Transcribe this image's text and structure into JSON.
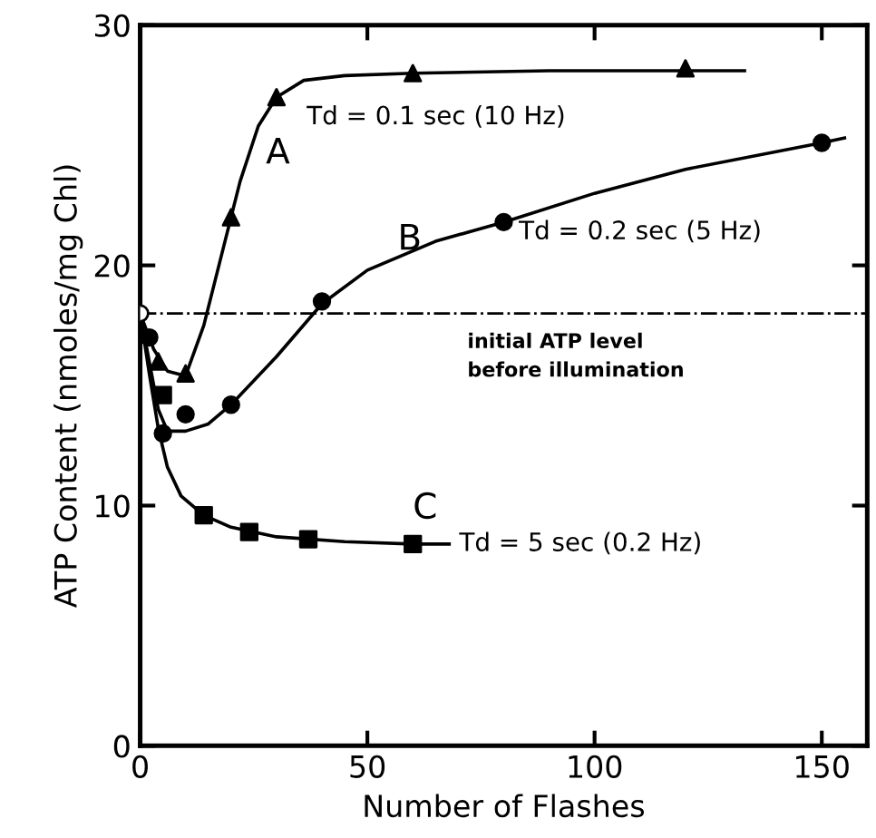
{
  "chart_data": {
    "type": "scatter",
    "xlabel": "Number of Flashes",
    "ylabel": "ATP Content (nmoles/mg Chl)",
    "xlim": [
      0,
      160
    ],
    "ylim": [
      0,
      30
    ],
    "xticks": [
      0,
      50,
      100,
      150
    ],
    "yticks": [
      0,
      10,
      20,
      30
    ],
    "grid": false,
    "legend": false,
    "series": [
      {
        "type": "line",
        "name": "A",
        "color": "#000000",
        "marker": "none",
        "x": [
          0,
          3,
          6,
          10,
          14,
          18,
          22,
          26,
          30,
          36,
          45,
          60,
          90,
          133
        ],
        "values": [
          18,
          16.5,
          15.6,
          15.4,
          17.5,
          20.5,
          23.5,
          25.8,
          27,
          27.7,
          27.9,
          28,
          28.1,
          28.1
        ]
      },
      {
        "type": "line",
        "name": "B",
        "color": "#000000",
        "marker": "none",
        "x": [
          0,
          2,
          4,
          6,
          10,
          15,
          20,
          30,
          40,
          50,
          65,
          80,
          100,
          120,
          150,
          155
        ],
        "values": [
          18,
          16,
          14,
          13.1,
          13.1,
          13.4,
          14.2,
          16.2,
          18.4,
          19.8,
          21,
          21.8,
          23,
          24,
          25.1,
          25.3
        ]
      },
      {
        "type": "line",
        "name": "Td = 5 sec (0.2 Hz)",
        "color": "#000000",
        "marker": "none",
        "x": [
          0,
          2,
          4,
          6,
          9,
          14,
          20,
          30,
          45,
          60,
          68
        ],
        "values": [
          18,
          15.5,
          13.2,
          11.6,
          10.4,
          9.6,
          9.1,
          8.7,
          8.5,
          8.4,
          8.4
        ]
      },
      {
        "name": "Td = 0.1 sec (10 Hz)",
        "color": "#000000",
        "marker": "triangle",
        "x": [
          4,
          10,
          20,
          30,
          60,
          120
        ],
        "values": [
          16,
          15.5,
          22,
          27,
          28,
          28.2
        ]
      },
      {
        "name": "Td = 0.2 sec (5 Hz)",
        "color": "#000000",
        "marker": "circle",
        "x": [
          2,
          5,
          10,
          20,
          40,
          80,
          150
        ],
        "values": [
          17,
          13,
          13.8,
          14.2,
          18.5,
          21.8,
          25.1
        ]
      },
      {
        "name": "C",
        "color": "#000000",
        "marker": "square",
        "x": [
          5,
          14,
          24,
          37,
          60
        ],
        "values": [
          14.6,
          9.6,
          8.9,
          8.6,
          8.4
        ]
      },
      {
        "color": "#ffffff",
        "marker": "circle",
        "x": [
          0
        ],
        "values": [
          18
        ]
      }
    ],
    "ref_lines": [
      {
        "axis": "y",
        "value": 18,
        "label": "initial ATP level\nbefore illumination",
        "line_style": "dashdot"
      }
    ]
  }
}
